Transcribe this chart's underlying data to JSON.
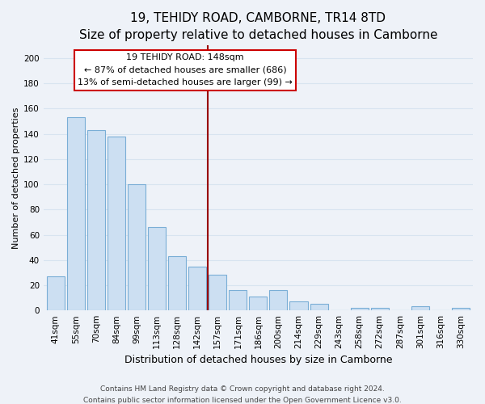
{
  "title": "19, TEHIDY ROAD, CAMBORNE, TR14 8TD",
  "subtitle": "Size of property relative to detached houses in Camborne",
  "xlabel": "Distribution of detached houses by size in Camborne",
  "ylabel": "Number of detached properties",
  "bar_labels": [
    "41sqm",
    "55sqm",
    "70sqm",
    "84sqm",
    "99sqm",
    "113sqm",
    "128sqm",
    "142sqm",
    "157sqm",
    "171sqm",
    "186sqm",
    "200sqm",
    "214sqm",
    "229sqm",
    "243sqm",
    "258sqm",
    "272sqm",
    "287sqm",
    "301sqm",
    "316sqm",
    "330sqm"
  ],
  "bar_values": [
    27,
    153,
    143,
    138,
    100,
    66,
    43,
    35,
    28,
    16,
    11,
    16,
    7,
    5,
    0,
    2,
    2,
    0,
    3,
    0,
    2
  ],
  "bar_color": "#ccdff2",
  "bar_edge_color": "#7aaed6",
  "vline_x": 7.5,
  "vline_color": "#990000",
  "annotation_title": "19 TEHIDY ROAD: 148sqm",
  "annotation_line1": "← 87% of detached houses are smaller (686)",
  "annotation_line2": "13% of semi-detached houses are larger (99) →",
  "annotation_box_edgecolor": "#cc0000",
  "ylim": [
    0,
    210
  ],
  "yticks": [
    0,
    20,
    40,
    60,
    80,
    100,
    120,
    140,
    160,
    180,
    200
  ],
  "footer1": "Contains HM Land Registry data © Crown copyright and database right 2024.",
  "footer2": "Contains public sector information licensed under the Open Government Licence v3.0.",
  "background_color": "#eef2f8",
  "grid_color": "#d8e4f0",
  "title_fontsize": 11,
  "subtitle_fontsize": 9.5,
  "xlabel_fontsize": 9,
  "ylabel_fontsize": 8,
  "tick_fontsize": 7.5,
  "annotation_fontsize": 8,
  "footer_fontsize": 6.5
}
